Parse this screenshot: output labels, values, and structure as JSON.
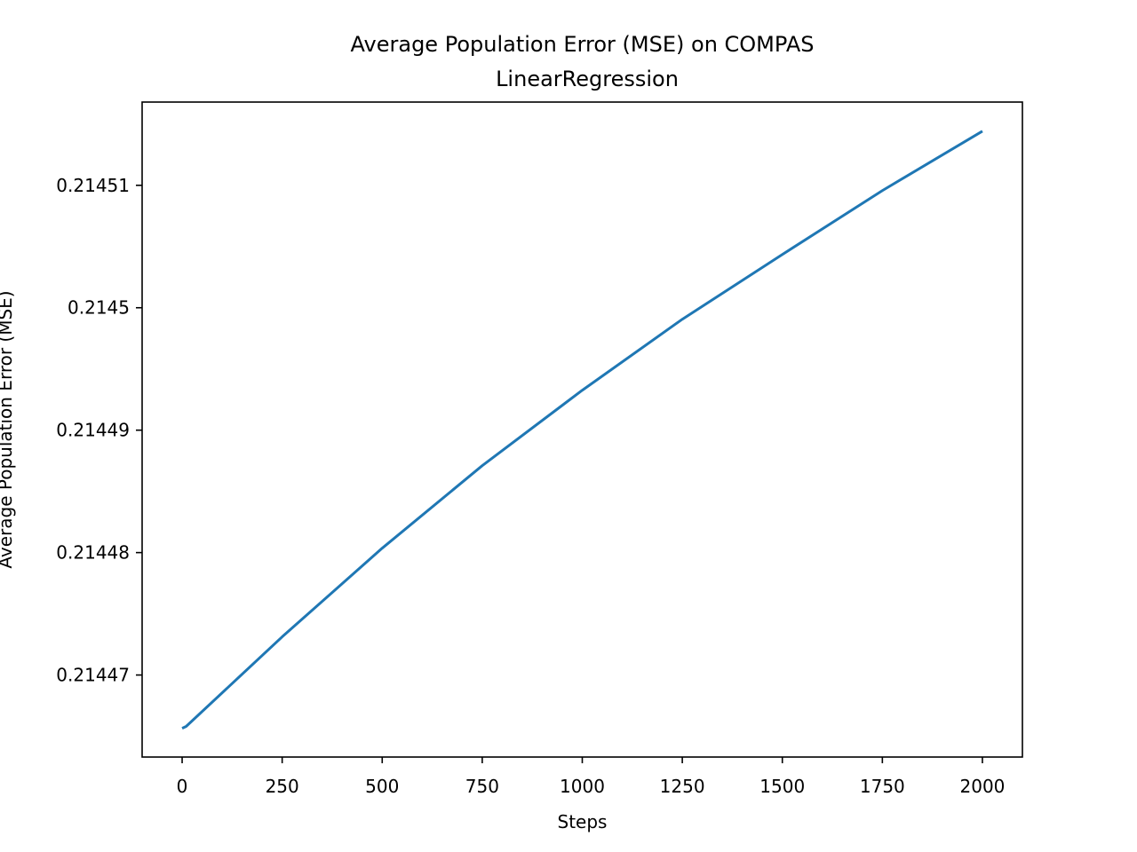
{
  "chart_data": {
    "type": "line",
    "title": "Average Population Error (MSE) on COMPAS",
    "subtitle": "LinearRegression",
    "x_label": "Steps",
    "y_label": "Average Population Error (MSE)",
    "x": [
      0,
      10,
      250,
      500,
      750,
      1000,
      1250,
      1500,
      1750,
      2000
    ],
    "series": [
      {
        "name": "Average Population Error (MSE)",
        "color": "#1f77b4",
        "values": [
          0.21446565,
          0.2144658,
          0.21447312,
          0.21448036,
          0.2144871,
          0.21449326,
          0.21449906,
          0.21450435,
          0.21450957,
          0.21451442
        ]
      }
    ],
    "xlim": [
      -100,
      2100
    ],
    "xticks": [
      0,
      250,
      500,
      750,
      1000,
      1250,
      1500,
      1750,
      2000
    ],
    "ylim": [
      0.2144633,
      0.2145168
    ],
    "yticks": [
      0.21447,
      0.21448,
      0.21449,
      0.2145,
      0.21451
    ],
    "grid": false
  }
}
